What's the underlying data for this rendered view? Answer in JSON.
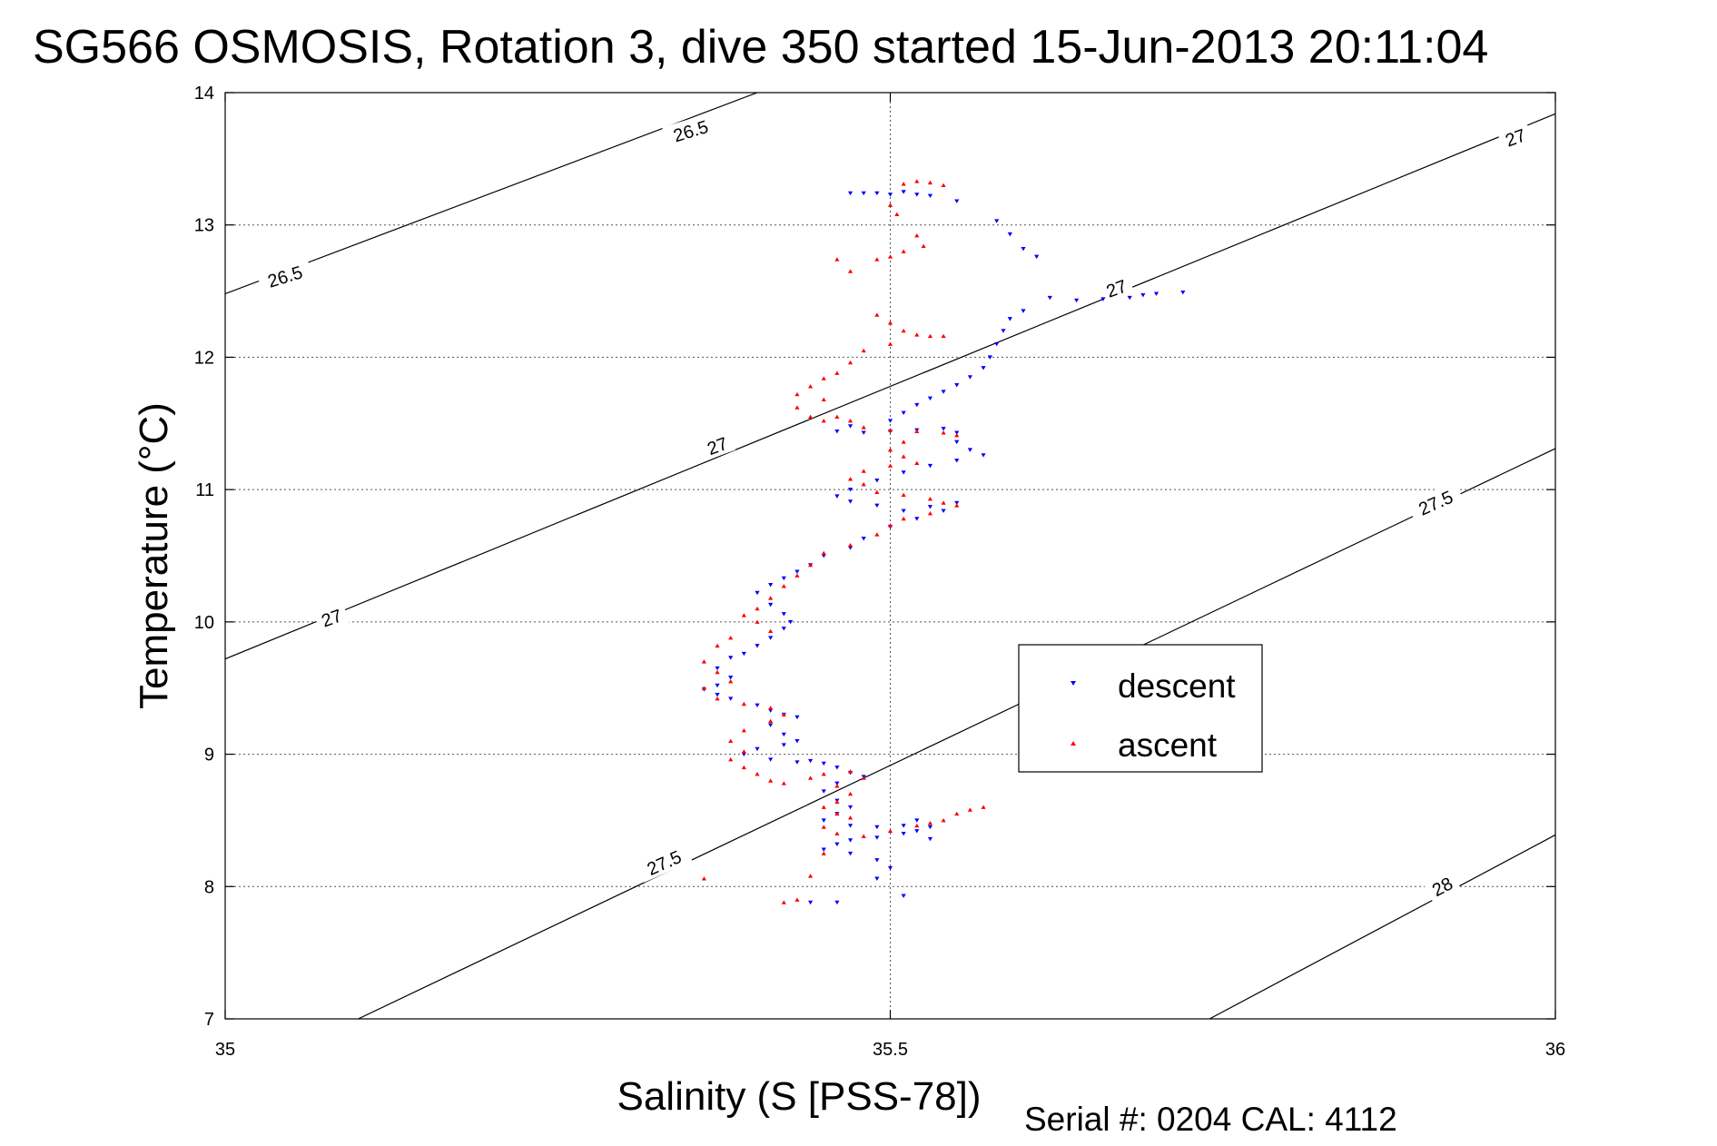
{
  "chart_data": {
    "type": "scatter",
    "title": "SG566 OSMOSIS, Rotation 3, dive 350 started 15-Jun-2013 20:11:04",
    "xlabel": "Salinity (S [PSS-78])",
    "ylabel": "Temperature (°C)",
    "xlim": [
      35,
      36
    ],
    "ylim": [
      7,
      14
    ],
    "x_ticks": [
      35,
      35.5,
      36
    ],
    "x_tick_labels": [
      "35",
      "35.5",
      "36"
    ],
    "y_ticks": [
      7,
      8,
      9,
      10,
      11,
      12,
      13,
      14
    ],
    "y_tick_labels": [
      "7",
      "8",
      "9",
      "10",
      "11",
      "12",
      "13",
      "14"
    ],
    "grid": true,
    "legend_position": "center-right",
    "footer": "Serial #: 0204  CAL: 4112",
    "density_contours": [
      {
        "level": "26.5",
        "points": [
          [
            35,
            12.48
          ],
          [
            35.4,
            14.0
          ]
        ]
      },
      {
        "level": "27",
        "points": [
          [
            35,
            9.72
          ],
          [
            36,
            13.84
          ]
        ]
      },
      {
        "level": "27.5",
        "points": [
          [
            35.1,
            7.0
          ],
          [
            36,
            11.31
          ]
        ]
      },
      {
        "level": "28",
        "points": [
          [
            35.74,
            7.0
          ],
          [
            36,
            8.39
          ]
        ]
      }
    ],
    "contour_labels": [
      {
        "text": "26.5",
        "x": 35.35,
        "y": 13.71,
        "rotate": -17
      },
      {
        "text": "26.5",
        "x": 35.045,
        "y": 12.61,
        "rotate": -17
      },
      {
        "text": "27",
        "x": 35.08,
        "y": 10.03,
        "rotate": -20
      },
      {
        "text": "27",
        "x": 35.37,
        "y": 11.33,
        "rotate": -20
      },
      {
        "text": "27",
        "x": 35.67,
        "y": 12.52,
        "rotate": -20
      },
      {
        "text": "27",
        "x": 35.97,
        "y": 13.66,
        "rotate": -20
      },
      {
        "text": "27.5",
        "x": 35.33,
        "y": 8.18,
        "rotate": -24
      },
      {
        "text": "27.5",
        "x": 35.91,
        "y": 10.9,
        "rotate": -24
      },
      {
        "text": "28",
        "x": 35.915,
        "y": 8.0,
        "rotate": -28
      }
    ],
    "series": [
      {
        "name": "descent",
        "color": "#0000ff",
        "marker": "triangle-down",
        "points": [
          [
            35.47,
            13.24
          ],
          [
            35.48,
            13.24
          ],
          [
            35.49,
            13.24
          ],
          [
            35.5,
            13.23
          ],
          [
            35.51,
            13.25
          ],
          [
            35.52,
            13.23
          ],
          [
            35.53,
            13.22
          ],
          [
            35.55,
            13.18
          ],
          [
            35.58,
            13.03
          ],
          [
            35.59,
            12.93
          ],
          [
            35.6,
            12.82
          ],
          [
            35.61,
            12.76
          ],
          [
            35.62,
            12.45
          ],
          [
            35.64,
            12.43
          ],
          [
            35.66,
            12.44
          ],
          [
            35.68,
            12.45
          ],
          [
            35.69,
            12.47
          ],
          [
            35.7,
            12.48
          ],
          [
            35.72,
            12.49
          ],
          [
            35.6,
            12.35
          ],
          [
            35.59,
            12.29
          ],
          [
            35.585,
            12.2
          ],
          [
            35.58,
            12.1
          ],
          [
            35.575,
            12.0
          ],
          [
            35.57,
            11.92
          ],
          [
            35.56,
            11.85
          ],
          [
            35.55,
            11.79
          ],
          [
            35.54,
            11.74
          ],
          [
            35.53,
            11.69
          ],
          [
            35.52,
            11.64
          ],
          [
            35.51,
            11.58
          ],
          [
            35.5,
            11.52
          ],
          [
            35.47,
            11.48
          ],
          [
            35.46,
            11.44
          ],
          [
            35.48,
            11.43
          ],
          [
            35.5,
            11.44
          ],
          [
            35.52,
            11.45
          ],
          [
            35.54,
            11.46
          ],
          [
            35.55,
            11.43
          ],
          [
            35.55,
            11.36
          ],
          [
            35.56,
            11.3
          ],
          [
            35.57,
            11.26
          ],
          [
            35.55,
            11.22
          ],
          [
            35.53,
            11.18
          ],
          [
            35.51,
            11.13
          ],
          [
            35.49,
            11.07
          ],
          [
            35.47,
            11.0
          ],
          [
            35.46,
            10.95
          ],
          [
            35.47,
            10.91
          ],
          [
            35.49,
            10.88
          ],
          [
            35.51,
            10.84
          ],
          [
            35.53,
            10.87
          ],
          [
            35.55,
            10.9
          ],
          [
            35.54,
            10.84
          ],
          [
            35.52,
            10.78
          ],
          [
            35.5,
            10.72
          ],
          [
            35.48,
            10.63
          ],
          [
            35.47,
            10.56
          ],
          [
            35.45,
            10.5
          ],
          [
            35.44,
            10.43
          ],
          [
            35.43,
            10.38
          ],
          [
            35.42,
            10.33
          ],
          [
            35.41,
            10.28
          ],
          [
            35.4,
            10.22
          ],
          [
            35.41,
            10.13
          ],
          [
            35.42,
            10.06
          ],
          [
            35.425,
            10.0
          ],
          [
            35.42,
            9.95
          ],
          [
            35.41,
            9.88
          ],
          [
            35.4,
            9.82
          ],
          [
            35.39,
            9.76
          ],
          [
            35.38,
            9.73
          ],
          [
            35.37,
            9.65
          ],
          [
            35.38,
            9.58
          ],
          [
            35.37,
            9.52
          ],
          [
            35.36,
            9.49
          ],
          [
            35.37,
            9.45
          ],
          [
            35.38,
            9.42
          ],
          [
            35.4,
            9.37
          ],
          [
            35.41,
            9.33
          ],
          [
            35.42,
            9.3
          ],
          [
            35.43,
            9.28
          ],
          [
            35.41,
            9.22
          ],
          [
            35.42,
            9.15
          ],
          [
            35.43,
            9.1
          ],
          [
            35.42,
            9.07
          ],
          [
            35.4,
            9.04
          ],
          [
            35.39,
            9.0
          ],
          [
            35.41,
            8.96
          ],
          [
            35.43,
            8.94
          ],
          [
            35.44,
            8.95
          ],
          [
            35.45,
            8.93
          ],
          [
            35.46,
            8.9
          ],
          [
            35.47,
            8.86
          ],
          [
            35.48,
            8.83
          ],
          [
            35.46,
            8.78
          ],
          [
            35.45,
            8.72
          ],
          [
            35.46,
            8.65
          ],
          [
            35.47,
            8.6
          ],
          [
            35.46,
            8.55
          ],
          [
            35.45,
            8.5
          ],
          [
            35.47,
            8.46
          ],
          [
            35.49,
            8.45
          ],
          [
            35.51,
            8.46
          ],
          [
            35.52,
            8.5
          ],
          [
            35.53,
            8.45
          ],
          [
            35.52,
            8.42
          ],
          [
            35.51,
            8.4
          ],
          [
            35.49,
            8.37
          ],
          [
            35.47,
            8.35
          ],
          [
            35.46,
            8.32
          ],
          [
            35.45,
            8.28
          ],
          [
            35.47,
            8.25
          ],
          [
            35.49,
            8.2
          ],
          [
            35.5,
            8.14
          ],
          [
            35.49,
            8.06
          ],
          [
            35.51,
            7.93
          ],
          [
            35.46,
            7.88
          ],
          [
            35.44,
            7.88
          ],
          [
            35.53,
            8.36
          ]
        ]
      },
      {
        "name": "ascent",
        "color": "#ff0000",
        "marker": "triangle-up",
        "points": [
          [
            35.51,
            13.31
          ],
          [
            35.52,
            13.33
          ],
          [
            35.53,
            13.32
          ],
          [
            35.54,
            13.3
          ],
          [
            35.5,
            13.15
          ],
          [
            35.505,
            13.08
          ],
          [
            35.52,
            12.92
          ],
          [
            35.525,
            12.84
          ],
          [
            35.51,
            12.8
          ],
          [
            35.5,
            12.76
          ],
          [
            35.49,
            12.74
          ],
          [
            35.46,
            12.74
          ],
          [
            35.47,
            12.65
          ],
          [
            35.49,
            12.32
          ],
          [
            35.5,
            12.26
          ],
          [
            35.51,
            12.2
          ],
          [
            35.52,
            12.17
          ],
          [
            35.53,
            12.16
          ],
          [
            35.54,
            12.16
          ],
          [
            35.5,
            12.1
          ],
          [
            35.48,
            12.05
          ],
          [
            35.47,
            11.96
          ],
          [
            35.46,
            11.88
          ],
          [
            35.45,
            11.84
          ],
          [
            35.44,
            11.78
          ],
          [
            35.43,
            11.72
          ],
          [
            35.45,
            11.68
          ],
          [
            35.43,
            11.62
          ],
          [
            35.44,
            11.55
          ],
          [
            35.45,
            11.52
          ],
          [
            35.46,
            11.55
          ],
          [
            35.47,
            11.52
          ],
          [
            35.48,
            11.47
          ],
          [
            35.5,
            11.45
          ],
          [
            35.52,
            11.44
          ],
          [
            35.54,
            11.43
          ],
          [
            35.55,
            11.41
          ],
          [
            35.51,
            11.36
          ],
          [
            35.5,
            11.3
          ],
          [
            35.51,
            11.25
          ],
          [
            35.52,
            11.2
          ],
          [
            35.5,
            11.18
          ],
          [
            35.48,
            11.14
          ],
          [
            35.47,
            11.08
          ],
          [
            35.48,
            11.04
          ],
          [
            35.49,
            10.98
          ],
          [
            35.51,
            10.96
          ],
          [
            35.53,
            10.93
          ],
          [
            35.54,
            10.9
          ],
          [
            35.55,
            10.88
          ],
          [
            35.53,
            10.82
          ],
          [
            35.51,
            10.78
          ],
          [
            35.5,
            10.73
          ],
          [
            35.49,
            10.66
          ],
          [
            35.47,
            10.58
          ],
          [
            35.45,
            10.52
          ],
          [
            35.44,
            10.43
          ],
          [
            35.43,
            10.35
          ],
          [
            35.42,
            10.27
          ],
          [
            35.41,
            10.18
          ],
          [
            35.4,
            10.1
          ],
          [
            35.39,
            10.05
          ],
          [
            35.4,
            10.0
          ],
          [
            35.41,
            9.93
          ],
          [
            35.38,
            9.88
          ],
          [
            35.37,
            9.82
          ],
          [
            35.36,
            9.7
          ],
          [
            35.37,
            9.62
          ],
          [
            35.38,
            9.55
          ],
          [
            35.36,
            9.5
          ],
          [
            35.37,
            9.42
          ],
          [
            35.39,
            9.38
          ],
          [
            35.41,
            9.35
          ],
          [
            35.42,
            9.3
          ],
          [
            35.41,
            9.25
          ],
          [
            35.39,
            9.18
          ],
          [
            35.38,
            9.1
          ],
          [
            35.39,
            9.02
          ],
          [
            35.38,
            8.96
          ],
          [
            35.39,
            8.9
          ],
          [
            35.4,
            8.85
          ],
          [
            35.41,
            8.8
          ],
          [
            35.42,
            8.78
          ],
          [
            35.44,
            8.82
          ],
          [
            35.45,
            8.85
          ],
          [
            35.47,
            8.87
          ],
          [
            35.48,
            8.82
          ],
          [
            35.46,
            8.76
          ],
          [
            35.47,
            8.7
          ],
          [
            35.46,
            8.64
          ],
          [
            35.45,
            8.6
          ],
          [
            35.46,
            8.55
          ],
          [
            35.47,
            8.52
          ],
          [
            35.45,
            8.45
          ],
          [
            35.46,
            8.4
          ],
          [
            35.48,
            8.38
          ],
          [
            35.5,
            8.42
          ],
          [
            35.52,
            8.46
          ],
          [
            35.53,
            8.48
          ],
          [
            35.54,
            8.5
          ],
          [
            35.55,
            8.55
          ],
          [
            35.56,
            8.58
          ],
          [
            35.57,
            8.6
          ],
          [
            35.45,
            8.25
          ],
          [
            35.44,
            8.08
          ],
          [
            35.43,
            7.9
          ],
          [
            35.42,
            7.88
          ],
          [
            35.36,
            8.06
          ]
        ]
      }
    ]
  }
}
